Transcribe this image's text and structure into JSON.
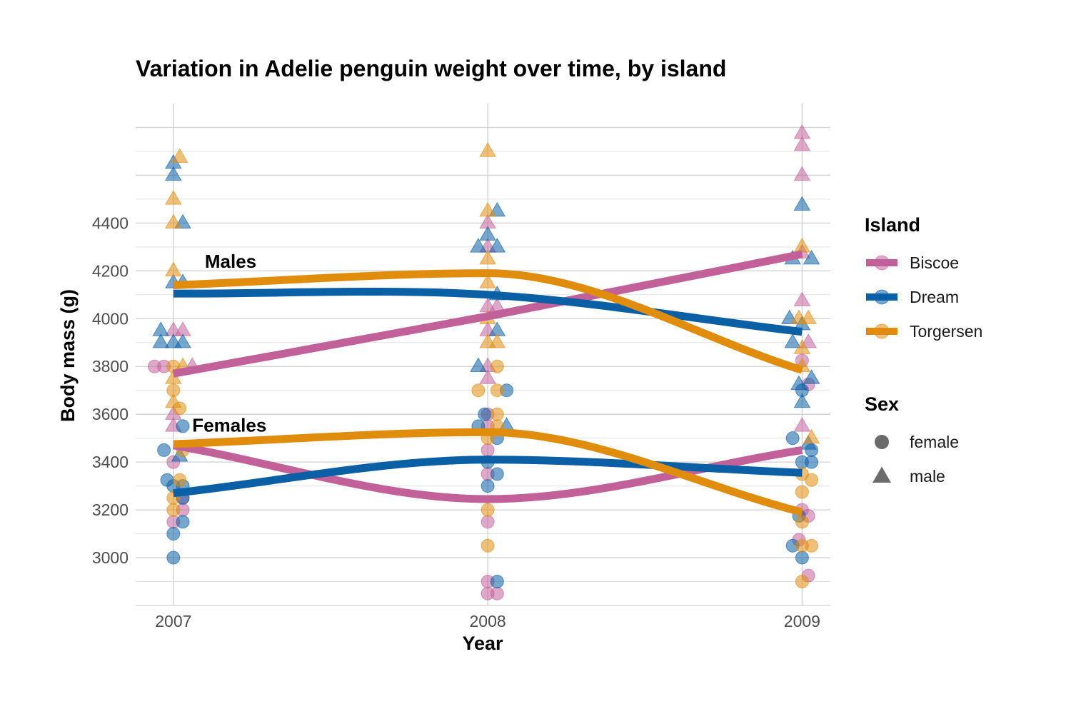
{
  "chart_data": {
    "type": "scatter",
    "title": "Variation in Adelie penguin weight over time, by island",
    "xlabel": "Year",
    "ylabel": "Body mass (g)",
    "x_ticks": [
      "2007",
      "2008",
      "2009"
    ],
    "y_ticks": [
      3000,
      3200,
      3400,
      3600,
      3800,
      4000,
      4200,
      4400
    ],
    "xlim": [
      2006.88,
      2009.09
    ],
    "ylim": [
      2800,
      4900
    ],
    "grid": true,
    "legend_position": "right",
    "colors": {
      "Biscoe": "#c2609a",
      "Dream": "#0a5fa5",
      "Torgersen": "#e08c0c"
    },
    "legend": {
      "island_title": "Island",
      "islands": [
        "Biscoe",
        "Dream",
        "Torgersen"
      ],
      "sex_title": "Sex",
      "sexes": [
        "female",
        "male"
      ]
    },
    "annotations": [
      {
        "label": "Males",
        "x": 2007.1,
        "y": 4240
      },
      {
        "label": "Females",
        "x": 2007.06,
        "y": 3555
      }
    ],
    "trend_lines": [
      {
        "island": "Biscoe",
        "sex": "male",
        "x": [
          2007,
          2008,
          2009
        ],
        "y": [
          3770,
          4010,
          4270
        ]
      },
      {
        "island": "Dream",
        "sex": "male",
        "x": [
          2007,
          2008,
          2009
        ],
        "y": [
          4105,
          4100,
          3945
        ]
      },
      {
        "island": "Torgersen",
        "sex": "male",
        "x": [
          2007,
          2008,
          2009
        ],
        "y": [
          4140,
          4190,
          3785
        ]
      },
      {
        "island": "Biscoe",
        "sex": "female",
        "x": [
          2007,
          2008,
          2009
        ],
        "y": [
          3470,
          3245,
          3450
        ]
      },
      {
        "island": "Dream",
        "sex": "female",
        "x": [
          2007,
          2008,
          2009
        ],
        "y": [
          3270,
          3410,
          3355
        ]
      },
      {
        "island": "Torgersen",
        "sex": "female",
        "x": [
          2007,
          2008,
          2009
        ],
        "y": [
          3475,
          3525,
          3190
        ]
      }
    ],
    "points": [
      {
        "island": "Biscoe",
        "sex": "female",
        "x": 2006.94,
        "y": 3800
      },
      {
        "island": "Biscoe",
        "sex": "female",
        "x": 2006.97,
        "y": 3800
      },
      {
        "island": "Biscoe",
        "sex": "female",
        "x": 2007.0,
        "y": 3400
      },
      {
        "island": "Biscoe",
        "sex": "female",
        "x": 2007.0,
        "y": 3150
      },
      {
        "island": "Biscoe",
        "sex": "female",
        "x": 2007.03,
        "y": 3200
      },
      {
        "island": "Biscoe",
        "sex": "female",
        "x": 2007.03,
        "y": 3250
      },
      {
        "island": "Biscoe",
        "sex": "male",
        "x": 2007.0,
        "y": 3950
      },
      {
        "island": "Biscoe",
        "sex": "male",
        "x": 2007.03,
        "y": 3950
      },
      {
        "island": "Biscoe",
        "sex": "male",
        "x": 2007.06,
        "y": 3800
      },
      {
        "island": "Biscoe",
        "sex": "male",
        "x": 2007.0,
        "y": 3600
      },
      {
        "island": "Biscoe",
        "sex": "male",
        "x": 2007.0,
        "y": 3550
      },
      {
        "island": "Dream",
        "sex": "female",
        "x": 2006.97,
        "y": 3450
      },
      {
        "island": "Dream",
        "sex": "female",
        "x": 2006.98,
        "y": 3325
      },
      {
        "island": "Dream",
        "sex": "female",
        "x": 2007.0,
        "y": 3300
      },
      {
        "island": "Dream",
        "sex": "female",
        "x": 2007.03,
        "y": 3300
      },
      {
        "island": "Dream",
        "sex": "female",
        "x": 2007.03,
        "y": 3250
      },
      {
        "island": "Dream",
        "sex": "female",
        "x": 2007.03,
        "y": 3150
      },
      {
        "island": "Dream",
        "sex": "female",
        "x": 2007.0,
        "y": 3100
      },
      {
        "island": "Dream",
        "sex": "female",
        "x": 2007.0,
        "y": 3000
      },
      {
        "island": "Dream",
        "sex": "female",
        "x": 2007.03,
        "y": 3550
      },
      {
        "island": "Dream",
        "sex": "male",
        "x": 2007.0,
        "y": 4650
      },
      {
        "island": "Dream",
        "sex": "male",
        "x": 2007.0,
        "y": 4600
      },
      {
        "island": "Dream",
        "sex": "male",
        "x": 2007.03,
        "y": 4400
      },
      {
        "island": "Dream",
        "sex": "male",
        "x": 2007.0,
        "y": 4150
      },
      {
        "island": "Dream",
        "sex": "male",
        "x": 2007.03,
        "y": 4150
      },
      {
        "island": "Dream",
        "sex": "male",
        "x": 2006.96,
        "y": 3950
      },
      {
        "island": "Dream",
        "sex": "male",
        "x": 2006.96,
        "y": 3900
      },
      {
        "island": "Dream",
        "sex": "male",
        "x": 2007.0,
        "y": 3900
      },
      {
        "island": "Dream",
        "sex": "male",
        "x": 2007.03,
        "y": 3900
      },
      {
        "island": "Dream",
        "sex": "male",
        "x": 2007.02,
        "y": 3425
      },
      {
        "island": "Torgersen",
        "sex": "female",
        "x": 2007.0,
        "y": 3800
      },
      {
        "island": "Torgersen",
        "sex": "female",
        "x": 2007.0,
        "y": 3700
      },
      {
        "island": "Torgersen",
        "sex": "female",
        "x": 2007.02,
        "y": 3625
      },
      {
        "island": "Torgersen",
        "sex": "female",
        "x": 2007.03,
        "y": 3450
      },
      {
        "island": "Torgersen",
        "sex": "female",
        "x": 2007.02,
        "y": 3325
      },
      {
        "island": "Torgersen",
        "sex": "female",
        "x": 2007.0,
        "y": 3250
      },
      {
        "island": "Torgersen",
        "sex": "female",
        "x": 2007.0,
        "y": 3200
      },
      {
        "island": "Torgersen",
        "sex": "male",
        "x": 2007.02,
        "y": 4675
      },
      {
        "island": "Torgersen",
        "sex": "male",
        "x": 2007.0,
        "y": 4500
      },
      {
        "island": "Torgersen",
        "sex": "male",
        "x": 2007.0,
        "y": 4400
      },
      {
        "island": "Torgersen",
        "sex": "male",
        "x": 2007.0,
        "y": 4200
      },
      {
        "island": "Torgersen",
        "sex": "male",
        "x": 2007.03,
        "y": 3800
      },
      {
        "island": "Torgersen",
        "sex": "male",
        "x": 2007.0,
        "y": 3750
      },
      {
        "island": "Torgersen",
        "sex": "male",
        "x": 2007.0,
        "y": 3650
      },
      {
        "island": "Biscoe",
        "sex": "female",
        "x": 2008.0,
        "y": 3600
      },
      {
        "island": "Biscoe",
        "sex": "female",
        "x": 2008.0,
        "y": 3550
      },
      {
        "island": "Biscoe",
        "sex": "female",
        "x": 2008.0,
        "y": 3450
      },
      {
        "island": "Biscoe",
        "sex": "female",
        "x": 2008.0,
        "y": 3350
      },
      {
        "island": "Biscoe",
        "sex": "female",
        "x": 2008.0,
        "y": 3150
      },
      {
        "island": "Biscoe",
        "sex": "female",
        "x": 2008.0,
        "y": 2900
      },
      {
        "island": "Biscoe",
        "sex": "female",
        "x": 2008.0,
        "y": 2850
      },
      {
        "island": "Biscoe",
        "sex": "female",
        "x": 2008.03,
        "y": 2850
      },
      {
        "island": "Biscoe",
        "sex": "male",
        "x": 2008.0,
        "y": 4400
      },
      {
        "island": "Biscoe",
        "sex": "male",
        "x": 2008.0,
        "y": 4300
      },
      {
        "island": "Biscoe",
        "sex": "male",
        "x": 2008.0,
        "y": 4050
      },
      {
        "island": "Biscoe",
        "sex": "male",
        "x": 2008.03,
        "y": 4050
      },
      {
        "island": "Biscoe",
        "sex": "male",
        "x": 2008.0,
        "y": 3950
      },
      {
        "island": "Biscoe",
        "sex": "male",
        "x": 2008.0,
        "y": 3800
      },
      {
        "island": "Biscoe",
        "sex": "male",
        "x": 2008.0,
        "y": 3750
      },
      {
        "island": "Dream",
        "sex": "female",
        "x": 2007.97,
        "y": 3550
      },
      {
        "island": "Dream",
        "sex": "female",
        "x": 2007.99,
        "y": 3600
      },
      {
        "island": "Dream",
        "sex": "female",
        "x": 2008.03,
        "y": 3500
      },
      {
        "island": "Dream",
        "sex": "female",
        "x": 2008.0,
        "y": 3400
      },
      {
        "island": "Dream",
        "sex": "female",
        "x": 2008.03,
        "y": 3350
      },
      {
        "island": "Dream",
        "sex": "female",
        "x": 2008.0,
        "y": 3300
      },
      {
        "island": "Dream",
        "sex": "female",
        "x": 2008.03,
        "y": 2900
      },
      {
        "island": "Dream",
        "sex": "female",
        "x": 2008.06,
        "y": 3700
      },
      {
        "island": "Dream",
        "sex": "male",
        "x": 2008.03,
        "y": 4450
      },
      {
        "island": "Dream",
        "sex": "male",
        "x": 2008.0,
        "y": 4350
      },
      {
        "island": "Dream",
        "sex": "male",
        "x": 2007.97,
        "y": 4300
      },
      {
        "island": "Dream",
        "sex": "male",
        "x": 2008.03,
        "y": 4300
      },
      {
        "island": "Dream",
        "sex": "male",
        "x": 2008.03,
        "y": 4100
      },
      {
        "island": "Dream",
        "sex": "male",
        "x": 2008.03,
        "y": 3950
      },
      {
        "island": "Dream",
        "sex": "male",
        "x": 2007.97,
        "y": 3800
      },
      {
        "island": "Dream",
        "sex": "male",
        "x": 2008.06,
        "y": 3550
      },
      {
        "island": "Torgersen",
        "sex": "female",
        "x": 2008.03,
        "y": 3800
      },
      {
        "island": "Torgersen",
        "sex": "female",
        "x": 2007.97,
        "y": 3700
      },
      {
        "island": "Torgersen",
        "sex": "female",
        "x": 2008.03,
        "y": 3700
      },
      {
        "island": "Torgersen",
        "sex": "female",
        "x": 2008.03,
        "y": 3600
      },
      {
        "island": "Torgersen",
        "sex": "female",
        "x": 2008.03,
        "y": 3550
      },
      {
        "island": "Torgersen",
        "sex": "female",
        "x": 2008.0,
        "y": 3500
      },
      {
        "island": "Torgersen",
        "sex": "female",
        "x": 2008.0,
        "y": 3200
      },
      {
        "island": "Torgersen",
        "sex": "female",
        "x": 2008.0,
        "y": 3050
      },
      {
        "island": "Torgersen",
        "sex": "male",
        "x": 2008.0,
        "y": 4700
      },
      {
        "island": "Torgersen",
        "sex": "male",
        "x": 2008.0,
        "y": 4450
      },
      {
        "island": "Torgersen",
        "sex": "male",
        "x": 2008.0,
        "y": 4250
      },
      {
        "island": "Torgersen",
        "sex": "male",
        "x": 2008.0,
        "y": 4150
      },
      {
        "island": "Torgersen",
        "sex": "male",
        "x": 2008.0,
        "y": 4000
      },
      {
        "island": "Torgersen",
        "sex": "male",
        "x": 2008.0,
        "y": 3900
      },
      {
        "island": "Torgersen",
        "sex": "male",
        "x": 2008.03,
        "y": 3900
      },
      {
        "island": "Biscoe",
        "sex": "female",
        "x": 2009.0,
        "y": 3825
      },
      {
        "island": "Biscoe",
        "sex": "female",
        "x": 2009.02,
        "y": 3725
      },
      {
        "island": "Biscoe",
        "sex": "female",
        "x": 2009.0,
        "y": 3200
      },
      {
        "island": "Biscoe",
        "sex": "female",
        "x": 2009.02,
        "y": 3175
      },
      {
        "island": "Biscoe",
        "sex": "female",
        "x": 2008.99,
        "y": 3075
      },
      {
        "island": "Biscoe",
        "sex": "female",
        "x": 2009.02,
        "y": 2925
      },
      {
        "island": "Biscoe",
        "sex": "male",
        "x": 2009.0,
        "y": 4775
      },
      {
        "island": "Biscoe",
        "sex": "male",
        "x": 2009.0,
        "y": 4725
      },
      {
        "island": "Biscoe",
        "sex": "male",
        "x": 2009.0,
        "y": 4600
      },
      {
        "island": "Biscoe",
        "sex": "male",
        "x": 2009.0,
        "y": 4275
      },
      {
        "island": "Biscoe",
        "sex": "male",
        "x": 2009.0,
        "y": 4075
      },
      {
        "island": "Biscoe",
        "sex": "male",
        "x": 2009.02,
        "y": 3900
      },
      {
        "island": "Biscoe",
        "sex": "male",
        "x": 2009.0,
        "y": 3550
      },
      {
        "island": "Dream",
        "sex": "female",
        "x": 2008.97,
        "y": 3500
      },
      {
        "island": "Dream",
        "sex": "female",
        "x": 2009.03,
        "y": 3450
      },
      {
        "island": "Dream",
        "sex": "female",
        "x": 2009.0,
        "y": 3400
      },
      {
        "island": "Dream",
        "sex": "female",
        "x": 2009.03,
        "y": 3400
      },
      {
        "island": "Dream",
        "sex": "female",
        "x": 2008.99,
        "y": 3175
      },
      {
        "island": "Dream",
        "sex": "female",
        "x": 2008.97,
        "y": 3050
      },
      {
        "island": "Dream",
        "sex": "female",
        "x": 2009.0,
        "y": 3000
      },
      {
        "island": "Dream",
        "sex": "female",
        "x": 2009.0,
        "y": 3700
      },
      {
        "island": "Dream",
        "sex": "male",
        "x": 2009.0,
        "y": 4475
      },
      {
        "island": "Dream",
        "sex": "male",
        "x": 2008.97,
        "y": 4250
      },
      {
        "island": "Dream",
        "sex": "male",
        "x": 2009.03,
        "y": 4250
      },
      {
        "island": "Dream",
        "sex": "male",
        "x": 2008.96,
        "y": 4000
      },
      {
        "island": "Dream",
        "sex": "male",
        "x": 2009.0,
        "y": 3975
      },
      {
        "island": "Dream",
        "sex": "male",
        "x": 2008.97,
        "y": 3900
      },
      {
        "island": "Dream",
        "sex": "male",
        "x": 2009.03,
        "y": 3750
      },
      {
        "island": "Dream",
        "sex": "male",
        "x": 2008.99,
        "y": 3725
      },
      {
        "island": "Dream",
        "sex": "male",
        "x": 2009.0,
        "y": 3650
      },
      {
        "island": "Dream",
        "sex": "male",
        "x": 2009.02,
        "y": 3475
      },
      {
        "island": "Torgersen",
        "sex": "female",
        "x": 2009.0,
        "y": 3350
      },
      {
        "island": "Torgersen",
        "sex": "female",
        "x": 2009.03,
        "y": 3325
      },
      {
        "island": "Torgersen",
        "sex": "female",
        "x": 2009.0,
        "y": 3275
      },
      {
        "island": "Torgersen",
        "sex": "female",
        "x": 2009.0,
        "y": 3150
      },
      {
        "island": "Torgersen",
        "sex": "female",
        "x": 2009.0,
        "y": 3050
      },
      {
        "island": "Torgersen",
        "sex": "female",
        "x": 2009.03,
        "y": 3050
      },
      {
        "island": "Torgersen",
        "sex": "female",
        "x": 2009.0,
        "y": 2900
      },
      {
        "island": "Torgersen",
        "sex": "male",
        "x": 2009.0,
        "y": 4300
      },
      {
        "island": "Torgersen",
        "sex": "male",
        "x": 2008.99,
        "y": 4000
      },
      {
        "island": "Torgersen",
        "sex": "male",
        "x": 2009.02,
        "y": 4000
      },
      {
        "island": "Torgersen",
        "sex": "male",
        "x": 2009.0,
        "y": 3875
      },
      {
        "island": "Torgersen",
        "sex": "male",
        "x": 2009.0,
        "y": 3800
      },
      {
        "island": "Torgersen",
        "sex": "male",
        "x": 2009.03,
        "y": 3500
      }
    ]
  }
}
